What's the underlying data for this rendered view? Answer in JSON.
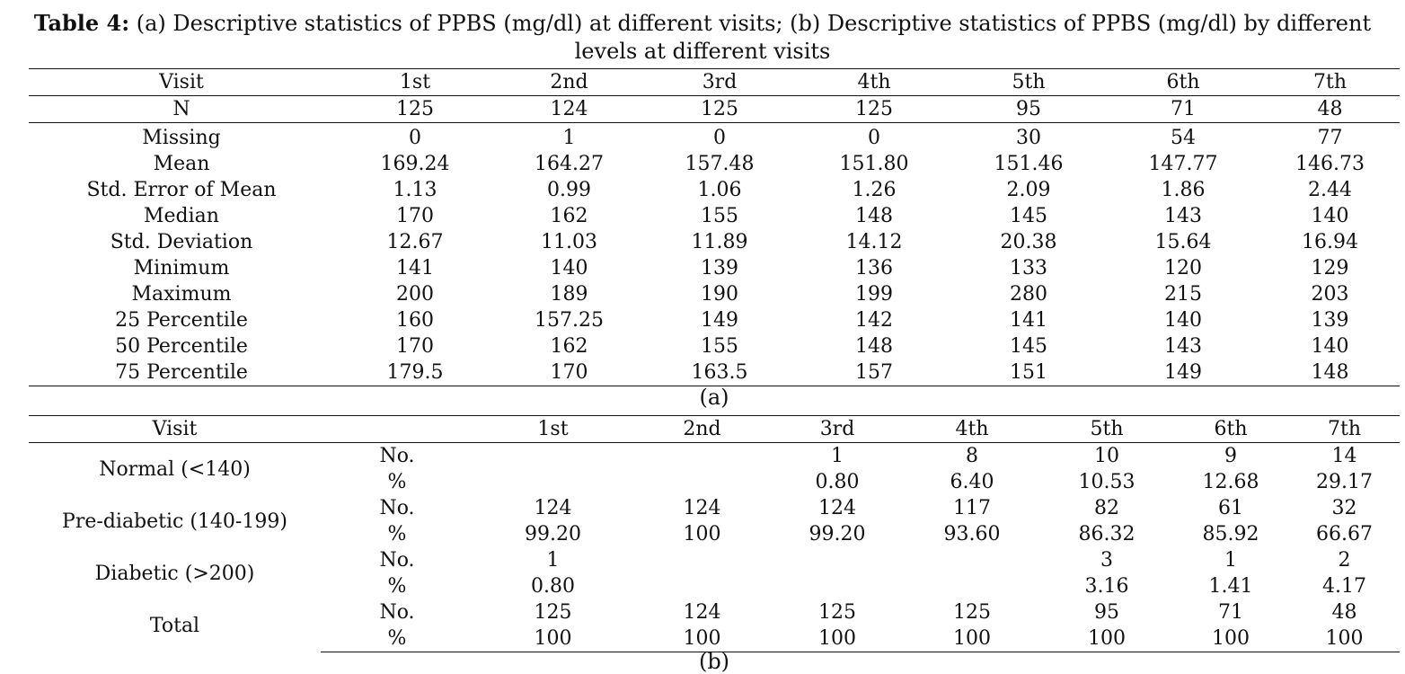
{
  "caption": {
    "label": "Table 4:",
    "text": " (a) Descriptive statistics of PPBS (mg/dl) at different visits; (b) Descriptive statistics of PPBS (mg/dl) by different levels at different visits"
  },
  "table_a": {
    "header": [
      "Visit",
      "1st",
      "2nd",
      "3rd",
      "4th",
      "5th",
      "6th",
      "7th"
    ],
    "rows": [
      [
        "N",
        "125",
        "124",
        "125",
        "125",
        "95",
        "71",
        "48"
      ],
      [
        "Missing",
        "0",
        "1",
        "0",
        "0",
        "30",
        "54",
        "77"
      ],
      [
        "Mean",
        "169.24",
        "164.27",
        "157.48",
        "151.80",
        "151.46",
        "147.77",
        "146.73"
      ],
      [
        "Std. Error of Mean",
        "1.13",
        "0.99",
        "1.06",
        "1.26",
        "2.09",
        "1.86",
        "2.44"
      ],
      [
        "Median",
        "170",
        "162",
        "155",
        "148",
        "145",
        "143",
        "140"
      ],
      [
        "Std. Deviation",
        "12.67",
        "11.03",
        "11.89",
        "14.12",
        "20.38",
        "15.64",
        "16.94"
      ],
      [
        "Minimum",
        "141",
        "140",
        "139",
        "136",
        "133",
        "120",
        "129"
      ],
      [
        "Maximum",
        "200",
        "189",
        "190",
        "199",
        "280",
        "215",
        "203"
      ],
      [
        "25 Percentile",
        "160",
        "157.25",
        "149",
        "142",
        "141",
        "140",
        "139"
      ],
      [
        "50 Percentile",
        "170",
        "162",
        "155",
        "148",
        "145",
        "143",
        "140"
      ],
      [
        "75 Percentile",
        "179.5",
        "170",
        "163.5",
        "157",
        "151",
        "149",
        "148"
      ]
    ],
    "sublabel": "(a)"
  },
  "table_b": {
    "header": [
      "Visit",
      "",
      "1st",
      "2nd",
      "3rd",
      "4th",
      "5th",
      "6th",
      "7th"
    ],
    "groups": [
      {
        "level": "Normal (<140)",
        "rows": [
          [
            "No.",
            "",
            "",
            "1",
            "8",
            "10",
            "9",
            "14"
          ],
          [
            "%",
            "",
            "",
            "0.80",
            "6.40",
            "10.53",
            "12.68",
            "29.17"
          ]
        ]
      },
      {
        "level": "Pre-diabetic (140-199)",
        "rows": [
          [
            "No.",
            "124",
            "124",
            "124",
            "117",
            "82",
            "61",
            "32"
          ],
          [
            "%",
            "99.20",
            "100",
            "99.20",
            "93.60",
            "86.32",
            "85.92",
            "66.67"
          ]
        ]
      },
      {
        "level": "Diabetic (>200)",
        "rows": [
          [
            "No.",
            "1",
            "",
            "",
            "",
            "3",
            "1",
            "2"
          ],
          [
            "%",
            "0.80",
            "",
            "",
            "",
            "3.16",
            "1.41",
            "4.17"
          ]
        ]
      },
      {
        "level": "Total",
        "rows": [
          [
            "No.",
            "125",
            "124",
            "125",
            "125",
            "95",
            "71",
            "48"
          ],
          [
            "%",
            "100",
            "100",
            "100",
            "100",
            "100",
            "100",
            "100"
          ]
        ]
      }
    ],
    "sublabel": "(b)"
  }
}
